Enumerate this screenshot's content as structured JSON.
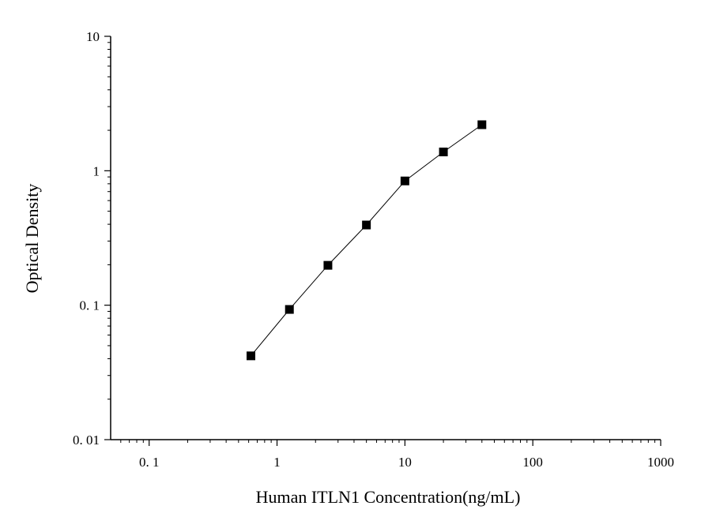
{
  "chart_data": {
    "type": "scatter",
    "x_scale": "log",
    "y_scale": "log",
    "xlabel": "Human ITLN1 Concentration(ng/mL)",
    "ylabel": "Optical Density",
    "xlim": [
      0.05,
      1000
    ],
    "ylim": [
      0.01,
      10
    ],
    "x_ticks": [
      {
        "value": 0.1,
        "label": "0. 1"
      },
      {
        "value": 1,
        "label": "1"
      },
      {
        "value": 10,
        "label": "10"
      },
      {
        "value": 100,
        "label": "100"
      },
      {
        "value": 1000,
        "label": "1000"
      }
    ],
    "y_ticks": [
      {
        "value": 0.01,
        "label": "0. 01"
      },
      {
        "value": 0.1,
        "label": "0. 1"
      },
      {
        "value": 1,
        "label": "1"
      },
      {
        "value": 10,
        "label": "10"
      }
    ],
    "grid": false,
    "legend": "none",
    "series": [
      {
        "marker": "square",
        "connected": true,
        "color": "#000000",
        "x": [
          0.625,
          1.25,
          2.5,
          5,
          10,
          20,
          40
        ],
        "y": [
          0.042,
          0.093,
          0.198,
          0.395,
          0.84,
          1.38,
          2.2
        ]
      }
    ]
  }
}
